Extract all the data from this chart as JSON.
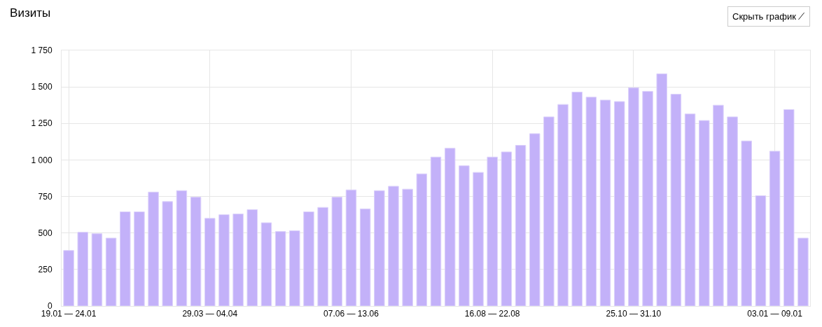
{
  "chart_data": {
    "type": "bar",
    "title": "Визиты",
    "annotations": [
      "Скрыть график ⟋"
    ],
    "categories": [
      "19.01 — 24.01",
      null,
      null,
      null,
      null,
      null,
      null,
      null,
      null,
      null,
      "29.03 — 04.04",
      null,
      null,
      null,
      null,
      null,
      null,
      null,
      null,
      null,
      "07.06 — 13.06",
      null,
      null,
      null,
      null,
      null,
      null,
      null,
      null,
      null,
      "16.08 — 22.08",
      null,
      null,
      null,
      null,
      null,
      null,
      null,
      null,
      null,
      "25.10 — 31.10",
      null,
      null,
      null,
      null,
      null,
      null,
      null,
      null,
      null,
      "03.01 — 09.01",
      null,
      null
    ],
    "values": [
      380,
      505,
      495,
      465,
      645,
      645,
      780,
      715,
      790,
      745,
      600,
      625,
      630,
      660,
      570,
      510,
      515,
      645,
      675,
      745,
      795,
      665,
      790,
      820,
      800,
      905,
      1020,
      1080,
      960,
      915,
      1020,
      1055,
      1100,
      1180,
      1295,
      1380,
      1465,
      1430,
      1410,
      1400,
      1495,
      1470,
      1590,
      1450,
      1315,
      1270,
      1375,
      1295,
      1130,
      755,
      1060,
      1345,
      465
    ],
    "color": "#c3b1f9",
    "ylim": [
      0,
      1750
    ],
    "yticks": [
      0,
      250,
      500,
      750,
      {
        "value": 1000,
        "label": "1 000"
      },
      {
        "value": 1250,
        "label": "1 250"
      },
      {
        "value": 1500,
        "label": "1 500"
      },
      {
        "value": 1750,
        "label": "1 750"
      }
    ],
    "grid": true,
    "legend": false
  }
}
